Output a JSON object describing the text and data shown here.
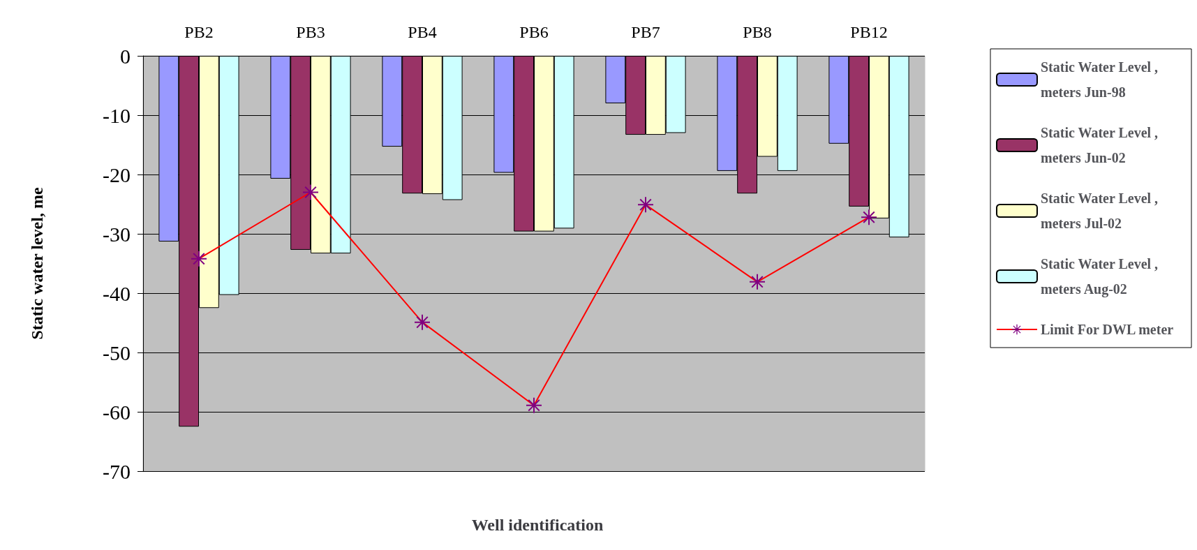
{
  "chart_data": {
    "type": "bar",
    "xlabel": "Well identification",
    "ylabel": "Static water level, me",
    "categories": [
      "PB2",
      "PB3",
      "PB4",
      "PB6",
      "PB7",
      "PB8",
      "PB12"
    ],
    "series": [
      {
        "name": "Static Water Level , meters Jun-98",
        "color": "#9999ff",
        "values": [
          -31.3,
          -20.7,
          -15.3,
          -19.7,
          -8,
          -19.4,
          -14.8
        ]
      },
      {
        "name": "Static Water Level , meters Jun-02",
        "color": "#993366",
        "values": [
          -62.5,
          -32.7,
          -23.2,
          -29.6,
          -13.3,
          -23.2,
          -25.4
        ]
      },
      {
        "name": "Static Water Level , meters Jul-02",
        "color": "#ffffcc",
        "values": [
          -42.5,
          -33.3,
          -23.3,
          -29.6,
          -13.3,
          -17,
          -27.4
        ]
      },
      {
        "name": "Static Water Level , meters Aug-02",
        "color": "#ccffff",
        "values": [
          -40.3,
          -33.3,
          -24.3,
          -29.1,
          -13,
          -19.4,
          -30.6
        ]
      },
      {
        "name": "Limit For DWL meter",
        "type": "line",
        "color": "#ff0000",
        "colors": [
          "#800080",
          "#800080",
          "#800080",
          "#800080",
          "#800080",
          "#800080",
          "#800080"
        ],
        "marker": "cross",
        "values": [
          -34.2,
          -23,
          -44.9,
          -58.9,
          -25.1,
          -38.1,
          -27.2
        ]
      }
    ],
    "ylim": [
      -70,
      0
    ],
    "yticks": [
      -70,
      -60,
      -50,
      -40,
      -30,
      -20,
      -10,
      0
    ],
    "grid": "y",
    "legend": "right"
  }
}
